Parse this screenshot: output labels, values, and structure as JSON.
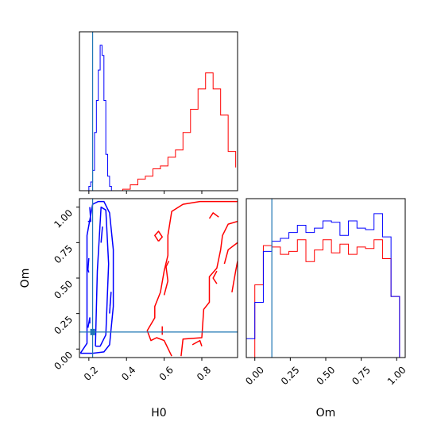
{
  "chart_data": {
    "type": "corner",
    "parameters": [
      "H0",
      "Om"
    ],
    "truths": {
      "H0": 0.22,
      "Om": 0.12
    },
    "colors": {
      "blue": "#0000ff",
      "red": "#ff0000",
      "truth": "#1f77b4"
    },
    "axes": {
      "H0": {
        "xlabel": "H0",
        "xlim": [
          0.15,
          0.99
        ],
        "ticks": [
          0.2,
          0.4,
          0.6,
          0.8
        ],
        "tick_labels": [
          "0.2",
          "0.4",
          "0.6",
          "0.8"
        ]
      },
      "Om": {
        "xlabel": "Om",
        "ylabel": "Om",
        "xlim": [
          -0.06,
          1.06
        ],
        "ylim": [
          -0.06,
          1.06
        ],
        "ticks": [
          0.0,
          0.25,
          0.5,
          0.75,
          1.0
        ],
        "tick_labels": [
          "0.00",
          "0.25",
          "0.50",
          "0.75",
          "1.00"
        ]
      }
    },
    "hist_H0": {
      "blue": {
        "edges": [
          0.2,
          0.21,
          0.22,
          0.23,
          0.24,
          0.25,
          0.26,
          0.27,
          0.28,
          0.29,
          0.3,
          0.31,
          0.32
        ],
        "counts": [
          0.03,
          0.06,
          0.14,
          0.4,
          0.62,
          0.83,
          1.0,
          0.93,
          0.62,
          0.25,
          0.1,
          0.03
        ]
      },
      "red": {
        "edges": [
          0.38,
          0.42,
          0.46,
          0.5,
          0.54,
          0.58,
          0.62,
          0.66,
          0.7,
          0.74,
          0.78,
          0.82,
          0.86,
          0.9,
          0.94,
          0.98
        ],
        "counts": [
          0.01,
          0.04,
          0.08,
          0.1,
          0.15,
          0.17,
          0.23,
          0.28,
          0.4,
          0.56,
          0.7,
          0.81,
          0.7,
          0.52,
          0.27,
          0.16
        ]
      }
    },
    "hist_Om": {
      "blue": {
        "edges": [
          -0.06,
          0.0,
          0.06,
          0.12,
          0.18,
          0.24,
          0.3,
          0.36,
          0.42,
          0.48,
          0.54,
          0.6,
          0.66,
          0.72,
          0.78,
          0.84,
          0.9,
          0.96,
          1.02
        ],
        "counts": [
          0.13,
          0.38,
          0.73,
          0.8,
          0.82,
          0.86,
          0.91,
          0.86,
          0.89,
          0.94,
          0.93,
          0.84,
          0.94,
          0.89,
          0.88,
          0.99,
          0.83,
          0.42
        ]
      },
      "red": {
        "edges": [
          0.0,
          0.06,
          0.12,
          0.18,
          0.24,
          0.3,
          0.36,
          0.42,
          0.48,
          0.54,
          0.6,
          0.66,
          0.72,
          0.78,
          0.84,
          0.9,
          0.96,
          1.02
        ],
        "counts": [
          0.5,
          0.77,
          0.76,
          0.71,
          0.73,
          0.81,
          0.66,
          0.74,
          0.81,
          0.72,
          0.78,
          0.71,
          0.76,
          0.75,
          0.81,
          0.68,
          0.42
        ]
      }
    },
    "contours": {
      "blue": [
        [
          [
            0.155,
            -0.03
          ],
          [
            0.19,
            0.04
          ],
          [
            0.19,
            0.8
          ],
          [
            0.22,
            1.02
          ],
          [
            0.25,
            1.04
          ],
          [
            0.28,
            1.04
          ],
          [
            0.31,
            0.96
          ],
          [
            0.33,
            0.7
          ],
          [
            0.33,
            0.3
          ],
          [
            0.31,
            0.03
          ],
          [
            0.28,
            -0.02
          ],
          [
            0.22,
            -0.03
          ],
          [
            0.155,
            -0.03
          ]
        ],
        [
          [
            0.235,
            0.02
          ],
          [
            0.245,
            0.55
          ],
          [
            0.265,
            1.0
          ],
          [
            0.29,
            0.98
          ],
          [
            0.305,
            0.6
          ],
          [
            0.29,
            0.1
          ],
          [
            0.26,
            0.02
          ],
          [
            0.235,
            0.02
          ]
        ],
        [
          [
            0.2,
            0.54
          ],
          [
            0.195,
            0.56
          ],
          [
            0.2,
            0.64
          ]
        ],
        [
          [
            0.195,
            0.9
          ],
          [
            0.21,
            0.9
          ],
          [
            0.205,
            1.0
          ]
        ],
        [
          [
            0.195,
            0.15
          ],
          [
            0.205,
            0.22
          ],
          [
            0.205,
            0.18
          ]
        ],
        [
          [
            0.31,
            0.25
          ],
          [
            0.318,
            0.4
          ],
          [
            0.312,
            0.3
          ]
        ],
        [
          [
            0.265,
            0.75
          ],
          [
            0.272,
            0.86
          ],
          [
            0.268,
            0.8
          ]
        ]
      ],
      "red": [
        [
          [
            0.64,
            -0.05
          ],
          [
            0.6,
            0.06
          ],
          [
            0.56,
            0.08
          ],
          [
            0.53,
            0.06
          ],
          [
            0.51,
            0.13
          ],
          [
            0.55,
            0.22
          ],
          [
            0.55,
            0.3
          ],
          [
            0.58,
            0.4
          ],
          [
            0.6,
            0.55
          ],
          [
            0.62,
            0.66
          ],
          [
            0.62,
            0.8
          ],
          [
            0.64,
            0.97
          ],
          [
            0.7,
            1.02
          ],
          [
            0.79,
            1.04
          ],
          [
            0.99,
            1.04
          ]
        ],
        [
          [
            0.69,
            -0.05
          ],
          [
            0.7,
            0.07
          ],
          [
            0.8,
            0.08
          ],
          [
            0.81,
            0.28
          ],
          [
            0.84,
            0.33
          ],
          [
            0.84,
            0.51
          ],
          [
            0.88,
            0.57
          ],
          [
            0.9,
            0.7
          ],
          [
            0.91,
            0.8
          ],
          [
            0.94,
            0.88
          ],
          [
            0.99,
            0.9
          ]
        ],
        [
          [
            0.57,
            0.76
          ],
          [
            0.55,
            0.8
          ],
          [
            0.57,
            0.83
          ],
          [
            0.59,
            0.79
          ],
          [
            0.57,
            0.76
          ]
        ],
        [
          [
            0.6,
            0.38
          ],
          [
            0.62,
            0.48
          ],
          [
            0.61,
            0.58
          ],
          [
            0.625,
            0.62
          ]
        ],
        [
          [
            0.59,
            0.1
          ],
          [
            0.59,
            0.16
          ]
        ],
        [
          [
            0.75,
            0.03
          ],
          [
            0.79,
            0.06
          ],
          [
            0.8,
            0.02
          ]
        ],
        [
          [
            0.88,
            0.46
          ],
          [
            0.86,
            0.5
          ],
          [
            0.88,
            0.55
          ]
        ],
        [
          [
            0.84,
            0.92
          ],
          [
            0.86,
            0.96
          ],
          [
            0.89,
            0.93
          ]
        ],
        [
          [
            0.92,
            0.6
          ],
          [
            0.94,
            0.7
          ],
          [
            0.99,
            0.75
          ]
        ],
        [
          [
            0.96,
            0.4
          ],
          [
            0.98,
            0.55
          ],
          [
            0.99,
            0.62
          ]
        ]
      ]
    }
  }
}
